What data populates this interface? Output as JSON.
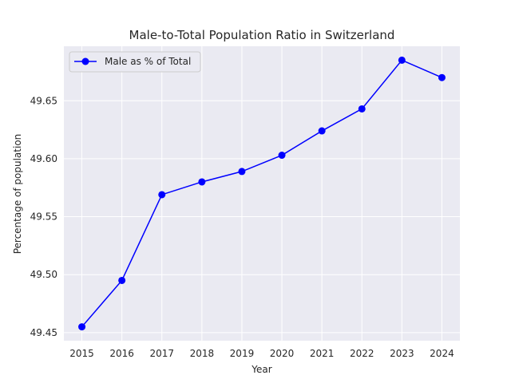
{
  "chart_data": {
    "type": "line",
    "title": "Male-to-Total Population Ratio in Switzerland",
    "xlabel": "Year",
    "ylabel": "Percentage of population",
    "x": [
      2015,
      2016,
      2017,
      2018,
      2019,
      2020,
      2021,
      2022,
      2023,
      2024
    ],
    "series": [
      {
        "name": "Male as % of Total",
        "color": "#0000ff",
        "marker": "circle",
        "values": [
          49.455,
          49.495,
          49.569,
          49.58,
          49.589,
          49.603,
          49.624,
          49.643,
          49.685,
          49.67
        ]
      }
    ],
    "xlim": [
      2014.55,
      2024.45
    ],
    "ylim": [
      49.443,
      49.697
    ],
    "yticks": [
      "49.45",
      "49.50",
      "49.55",
      "49.60",
      "49.65"
    ],
    "xticks": [
      "2015",
      "2016",
      "2017",
      "2018",
      "2019",
      "2020",
      "2021",
      "2022",
      "2023",
      "2024"
    ],
    "grid": true,
    "legend_position": "top-left",
    "background": "#eaeaf2",
    "grid_color": "#ffffff"
  }
}
